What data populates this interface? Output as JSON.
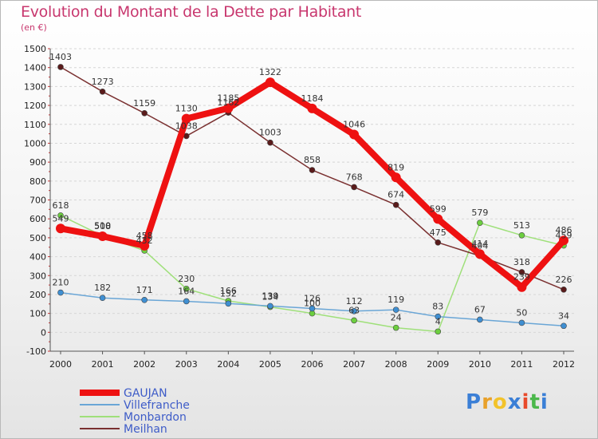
{
  "title": "Evolution du Montant de la Dette par Habitant",
  "subtitle": "(en €)",
  "logo": {
    "text": "Proxiti",
    "colors": [
      "#3b7fd6",
      "#e8a12b",
      "#f2c32b",
      "#3b7fd6",
      "#e84a2b",
      "#4cb84c",
      "#3b7fd6"
    ]
  },
  "chart_data": {
    "type": "line",
    "x": [
      "2000",
      "2001",
      "2002",
      "2003",
      "2004",
      "2005",
      "2006",
      "2007",
      "2008",
      "2009",
      "2010",
      "2011",
      "2012"
    ],
    "ylim": [
      -100,
      1500
    ],
    "yticks": [
      -100,
      0,
      100,
      200,
      300,
      400,
      500,
      600,
      700,
      800,
      900,
      1000,
      1100,
      1200,
      1300,
      1400,
      1500
    ],
    "grid": "horizontal-dashed",
    "legend": "bottom-left",
    "series": [
      {
        "name": "GAUJAN",
        "color": "#ee1111",
        "marker": "#ee1111",
        "values": [
          549,
          508,
          458,
          1130,
          1185,
          1322,
          1184,
          1046,
          819,
          599,
          414,
          239,
          486
        ]
      },
      {
        "name": "Villefranche",
        "color": "#6aa6d6",
        "marker": "#3f8fd2",
        "values": [
          210,
          182,
          171,
          164,
          152,
          139,
          126,
          112,
          119,
          83,
          67,
          50,
          34
        ]
      },
      {
        "name": "Monbardon",
        "color": "#9fe07a",
        "marker": "#6ccf3f",
        "values": [
          618,
          510,
          432,
          230,
          166,
          134,
          100,
          63,
          24,
          4,
          579,
          513,
          459
        ]
      },
      {
        "name": "Meilhan",
        "color": "#7a3030",
        "marker": "#5a1b1b",
        "values": [
          1403,
          1273,
          1159,
          1038,
          1162,
          1003,
          858,
          768,
          674,
          475,
          404,
          318,
          226
        ]
      }
    ]
  }
}
